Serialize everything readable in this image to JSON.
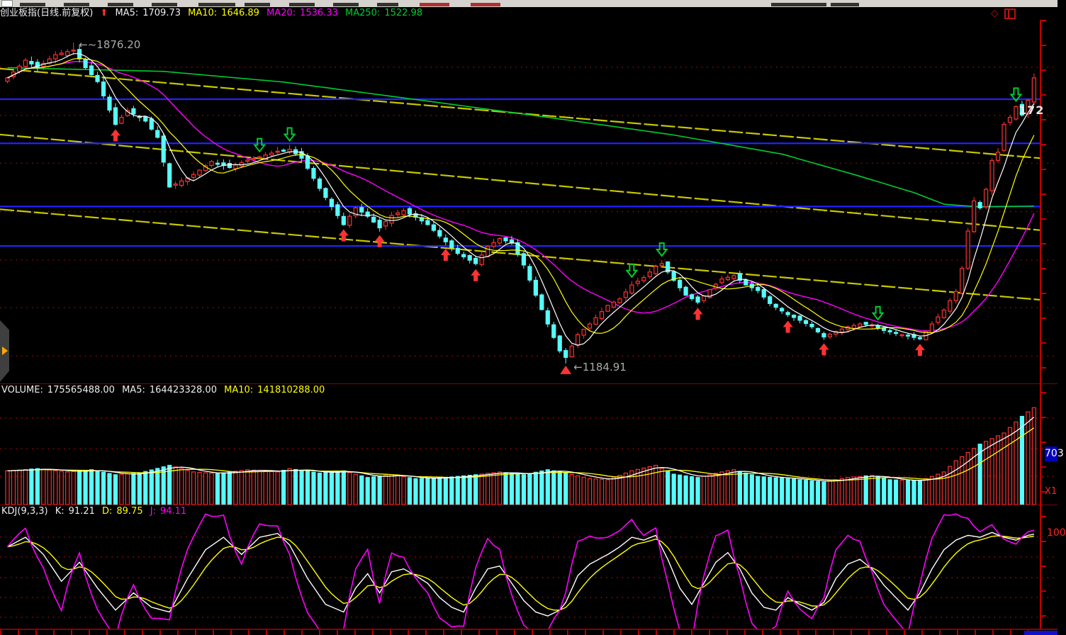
{
  "title_bar": {
    "instrument": "创业板指(日线.前复权)",
    "trend_icon": "up-arrow",
    "ma_values": [
      {
        "label": "MA5:",
        "value": "1709.73",
        "color": "#eeeeee"
      },
      {
        "label": "MA10:",
        "value": "1646.89",
        "color": "#ffff00"
      },
      {
        "label": "MA20:",
        "value": "1536.33",
        "color": "#ff00ff"
      },
      {
        "label": "MA250:",
        "value": "1522.98",
        "color": "#00cc33"
      }
    ]
  },
  "volume_header": {
    "label": "VOLUME:",
    "value": "175565488.00",
    "ma5_label": "MA5:",
    "ma5_value": "164423328.00",
    "ma10_label": "MA10:",
    "ma10_value": "141810288.00"
  },
  "kdj_header": {
    "label": "KDJ(9,3,3)",
    "k_label": "K:",
    "k_value": "91.21",
    "d_label": "D:",
    "d_value": "89.75",
    "j_label": "J:",
    "j_value": "94.11"
  },
  "right_axis_labels": {
    "last_price_partial": "172",
    "volume_badge": "703",
    "volume_multiplier": "X1",
    "kdj_scale": "100"
  },
  "annotations": {
    "high_label": "←~1876.20",
    "low_label": "←1184.91"
  },
  "colors": {
    "up_candle": "#ff3232",
    "down_candle": "#55ffff",
    "ma5": "#ffffff",
    "ma10": "#ffff00",
    "ma20": "#ff00ff",
    "ma250": "#00cc33",
    "grid_dots": "#b00000",
    "axis": "#c00000",
    "separator": "#8b0000",
    "blue_line": "#2323ff",
    "trend_line": "#c8c800",
    "buy_arrow": "#ff3232",
    "sell_arrow": "#00cc33",
    "annotation_text": "#aaaaaa",
    "volume_badge_bg": "#0000bb"
  },
  "chart_data": [
    {
      "type": "candlestick",
      "title": "创业板指(日线.前复权)",
      "n": 172,
      "ylim": [
        1142,
        1925
      ],
      "close_anchors": [
        [
          0,
          1800
        ],
        [
          3,
          1838
        ],
        [
          5,
          1822
        ],
        [
          8,
          1850
        ],
        [
          11,
          1860
        ],
        [
          13,
          1822
        ],
        [
          15,
          1792
        ],
        [
          18,
          1700
        ],
        [
          20,
          1730
        ],
        [
          23,
          1707
        ],
        [
          25,
          1672
        ],
        [
          27,
          1565
        ],
        [
          29,
          1578
        ],
        [
          31,
          1592
        ],
        [
          34,
          1620
        ],
        [
          37,
          1607
        ],
        [
          40,
          1623
        ],
        [
          42,
          1630
        ],
        [
          45,
          1642
        ],
        [
          47,
          1646
        ],
        [
          49,
          1627
        ],
        [
          52,
          1562
        ],
        [
          56,
          1484
        ],
        [
          58,
          1520
        ],
        [
          60,
          1502
        ],
        [
          62,
          1477
        ],
        [
          64,
          1504
        ],
        [
          66,
          1514
        ],
        [
          68,
          1500
        ],
        [
          70,
          1484
        ],
        [
          73,
          1447
        ],
        [
          75,
          1422
        ],
        [
          78,
          1400
        ],
        [
          80,
          1437
        ],
        [
          82,
          1454
        ],
        [
          84,
          1444
        ],
        [
          86,
          1397
        ],
        [
          88,
          1332
        ],
        [
          90,
          1270
        ],
        [
          92,
          1212
        ],
        [
          93,
          1198
        ],
        [
          95,
          1247
        ],
        [
          97,
          1270
        ],
        [
          100,
          1310
        ],
        [
          102,
          1324
        ],
        [
          104,
          1354
        ],
        [
          106,
          1370
        ],
        [
          108,
          1394
        ],
        [
          109,
          1400
        ],
        [
          111,
          1364
        ],
        [
          113,
          1332
        ],
        [
          115,
          1317
        ],
        [
          117,
          1344
        ],
        [
          119,
          1367
        ],
        [
          121,
          1374
        ],
        [
          123,
          1354
        ],
        [
          125,
          1342
        ],
        [
          127,
          1314
        ],
        [
          130,
          1290
        ],
        [
          132,
          1278
        ],
        [
          134,
          1264
        ],
        [
          136,
          1242
        ],
        [
          138,
          1254
        ],
        [
          140,
          1264
        ],
        [
          142,
          1270
        ],
        [
          144,
          1268
        ],
        [
          146,
          1256
        ],
        [
          148,
          1250
        ],
        [
          150,
          1244
        ],
        [
          152,
          1238
        ],
        [
          154,
          1270
        ],
        [
          156,
          1300
        ],
        [
          158,
          1340
        ],
        [
          159,
          1390
        ],
        [
          160,
          1470
        ],
        [
          161,
          1535
        ],
        [
          162,
          1520
        ],
        [
          163,
          1560
        ],
        [
          164,
          1622
        ],
        [
          165,
          1640
        ],
        [
          166,
          1700
        ],
        [
          167,
          1715
        ],
        [
          168,
          1738
        ],
        [
          169,
          1720
        ],
        [
          170,
          1752
        ],
        [
          171,
          1800
        ]
      ],
      "high_marker": {
        "index": 11,
        "price": 1876.2
      },
      "low_marker": {
        "index": 93,
        "price": 1184.91
      },
      "ma250_anchors": [
        [
          0,
          1822
        ],
        [
          26,
          1814
        ],
        [
          46,
          1791
        ],
        [
          70,
          1750
        ],
        [
          94,
          1708
        ],
        [
          111,
          1677
        ],
        [
          129,
          1636
        ],
        [
          141,
          1592
        ],
        [
          151,
          1553
        ],
        [
          156,
          1528
        ],
        [
          162,
          1522
        ],
        [
          171,
          1524
        ]
      ],
      "blue_lines": [
        1754,
        1659,
        1523,
        1438
      ],
      "trend_lines": [
        [
          1820,
          1627
        ],
        [
          1678,
          1472
        ],
        [
          1517,
          1322
        ]
      ],
      "grid_lines": [
        1823,
        1719,
        1616,
        1512,
        1408,
        1305,
        1201
      ],
      "buy_signals": [
        18,
        56,
        62,
        73,
        78,
        115,
        130,
        136,
        152
      ],
      "sell_signals": [
        42,
        47,
        104,
        109,
        145,
        168
      ]
    },
    {
      "type": "bar",
      "name": "VOLUME",
      "ylim": [
        0,
        195
      ],
      "unit": "millions",
      "last_value": 175.57,
      "vol_anchors": [
        [
          0,
          62
        ],
        [
          5,
          66
        ],
        [
          10,
          60
        ],
        [
          14,
          64
        ],
        [
          18,
          55
        ],
        [
          22,
          58
        ],
        [
          27,
          72
        ],
        [
          31,
          60
        ],
        [
          35,
          57
        ],
        [
          40,
          64
        ],
        [
          45,
          60
        ],
        [
          47,
          66
        ],
        [
          52,
          58
        ],
        [
          56,
          62
        ],
        [
          60,
          50
        ],
        [
          64,
          55
        ],
        [
          68,
          48
        ],
        [
          73,
          50
        ],
        [
          78,
          55
        ],
        [
          82,
          60
        ],
        [
          86,
          55
        ],
        [
          90,
          64
        ],
        [
          93,
          58
        ],
        [
          97,
          48
        ],
        [
          100,
          46
        ],
        [
          104,
          62
        ],
        [
          108,
          72
        ],
        [
          111,
          56
        ],
        [
          115,
          50
        ],
        [
          119,
          60
        ],
        [
          121,
          64
        ],
        [
          125,
          52
        ],
        [
          130,
          48
        ],
        [
          134,
          44
        ],
        [
          136,
          42
        ],
        [
          140,
          50
        ],
        [
          144,
          54
        ],
        [
          147,
          46
        ],
        [
          152,
          44
        ],
        [
          154,
          52
        ],
        [
          156,
          60
        ],
        [
          158,
          80
        ],
        [
          160,
          95
        ],
        [
          162,
          110
        ],
        [
          164,
          120
        ],
        [
          166,
          130
        ],
        [
          167,
          140
        ],
        [
          168,
          150
        ],
        [
          169,
          160
        ],
        [
          170,
          168
        ],
        [
          171,
          175.57
        ]
      ],
      "grid_local_y": [
        30,
        73,
        112
      ]
    },
    {
      "type": "line",
      "name": "KDJ(9,3,3)",
      "ylim": [
        -8,
        108
      ],
      "k_last": 91.21,
      "d_last": 89.75,
      "j_last": 94.11,
      "k_anchors": [
        [
          0,
          78
        ],
        [
          3,
          88
        ],
        [
          6,
          70
        ],
        [
          9,
          42
        ],
        [
          12,
          62
        ],
        [
          15,
          35
        ],
        [
          18,
          12
        ],
        [
          21,
          30
        ],
        [
          24,
          15
        ],
        [
          27,
          10
        ],
        [
          30,
          45
        ],
        [
          33,
          75
        ],
        [
          36,
          88
        ],
        [
          39,
          70
        ],
        [
          42,
          88
        ],
        [
          45,
          92
        ],
        [
          47,
          80
        ],
        [
          50,
          45
        ],
        [
          53,
          18
        ],
        [
          56,
          10
        ],
        [
          58,
          35
        ],
        [
          60,
          50
        ],
        [
          62,
          30
        ],
        [
          64,
          52
        ],
        [
          66,
          55
        ],
        [
          68,
          48
        ],
        [
          70,
          40
        ],
        [
          72,
          25
        ],
        [
          74,
          15
        ],
        [
          76,
          10
        ],
        [
          78,
          35
        ],
        [
          80,
          55
        ],
        [
          82,
          58
        ],
        [
          84,
          40
        ],
        [
          86,
          22
        ],
        [
          88,
          10
        ],
        [
          90,
          6
        ],
        [
          92,
          12
        ],
        [
          93,
          20
        ],
        [
          95,
          48
        ],
        [
          97,
          60
        ],
        [
          100,
          70
        ],
        [
          102,
          78
        ],
        [
          104,
          88
        ],
        [
          106,
          85
        ],
        [
          108,
          90
        ],
        [
          110,
          65
        ],
        [
          112,
          35
        ],
        [
          114,
          18
        ],
        [
          116,
          40
        ],
        [
          118,
          62
        ],
        [
          120,
          72
        ],
        [
          122,
          55
        ],
        [
          124,
          30
        ],
        [
          126,
          15
        ],
        [
          128,
          12
        ],
        [
          130,
          25
        ],
        [
          132,
          18
        ],
        [
          134,
          12
        ],
        [
          136,
          20
        ],
        [
          138,
          45
        ],
        [
          140,
          60
        ],
        [
          142,
          65
        ],
        [
          144,
          55
        ],
        [
          146,
          38
        ],
        [
          148,
          25
        ],
        [
          150,
          12
        ],
        [
          152,
          30
        ],
        [
          154,
          55
        ],
        [
          156,
          75
        ],
        [
          158,
          85
        ],
        [
          160,
          90
        ],
        [
          162,
          88
        ],
        [
          164,
          93
        ],
        [
          166,
          88
        ],
        [
          168,
          85
        ],
        [
          170,
          90
        ],
        [
          171,
          91.21
        ]
      ],
      "grid_local_y": [
        27,
        55,
        84,
        112,
        140
      ]
    }
  ]
}
